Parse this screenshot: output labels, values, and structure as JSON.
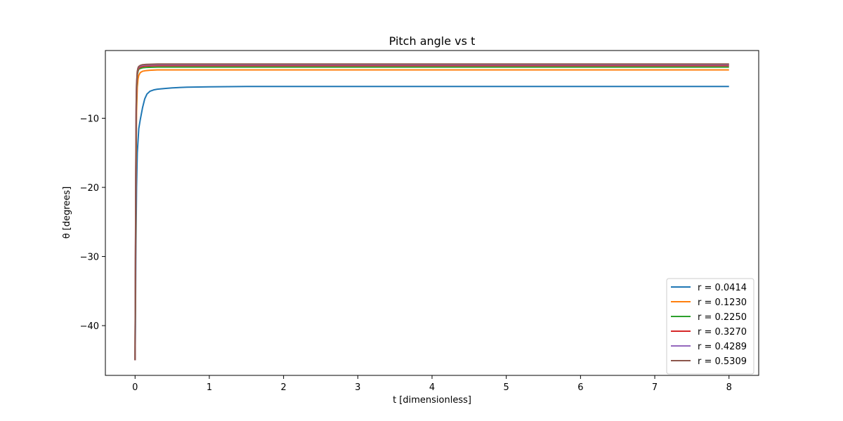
{
  "chart_data": {
    "type": "line",
    "title": "Pitch angle vs t",
    "xlabel": "t [dimensionless]",
    "ylabel": "θ [degrees]",
    "xlim": [
      -0.4,
      8.4
    ],
    "ylim": [
      -47.2,
      -0.2
    ],
    "xticks": [
      0,
      1,
      2,
      3,
      4,
      5,
      6,
      7,
      8
    ],
    "yticks": [
      -40,
      -30,
      -20,
      -10
    ],
    "ytick_labels": [
      "−40",
      "−30",
      "−20",
      "−10"
    ],
    "grid": false,
    "legend_position": "lower-right",
    "series": [
      {
        "name": "r = 0.0414",
        "color": "#1f77b4",
        "x": [
          0,
          0.005,
          0.01,
          0.02,
          0.03,
          0.05,
          0.07,
          0.1,
          0.13,
          0.16,
          0.2,
          0.25,
          0.3,
          0.4,
          0.5,
          0.7,
          1.0,
          1.5,
          2,
          3,
          4,
          5,
          6,
          7,
          8
        ],
        "y": [
          -45,
          -40,
          -30,
          -20,
          -15,
          -11.5,
          -10.2,
          -8.5,
          -7.2,
          -6.5,
          -6.1,
          -5.9,
          -5.8,
          -5.7,
          -5.6,
          -5.5,
          -5.45,
          -5.4,
          -5.4,
          -5.4,
          -5.4,
          -5.4,
          -5.4,
          -5.4,
          -5.4
        ]
      },
      {
        "name": "r = 0.1230",
        "color": "#ff7f0e",
        "x": [
          0,
          0.005,
          0.01,
          0.015,
          0.02,
          0.03,
          0.04,
          0.05,
          0.07,
          0.1,
          0.15,
          0.2,
          0.3,
          0.5,
          1,
          2,
          4,
          6,
          8
        ],
        "y": [
          -45,
          -35,
          -25,
          -15,
          -9,
          -5.5,
          -4.3,
          -3.8,
          -3.4,
          -3.2,
          -3.1,
          -3.05,
          -3.0,
          -3.0,
          -3.0,
          -3.0,
          -3.0,
          -3.0,
          -3.0
        ]
      },
      {
        "name": "r = 0.2250",
        "color": "#2ca02c",
        "x": [
          0,
          0.005,
          0.01,
          0.015,
          0.02,
          0.03,
          0.04,
          0.05,
          0.07,
          0.1,
          0.15,
          0.3,
          1,
          2,
          4,
          6,
          8
        ],
        "y": [
          -45,
          -33,
          -20,
          -10,
          -6,
          -3.8,
          -3.2,
          -2.9,
          -2.8,
          -2.7,
          -2.65,
          -2.6,
          -2.6,
          -2.6,
          -2.6,
          -2.6,
          -2.6
        ]
      },
      {
        "name": "r = 0.3270",
        "color": "#d62728",
        "x": [
          0,
          0.005,
          0.01,
          0.015,
          0.02,
          0.03,
          0.04,
          0.05,
          0.07,
          0.1,
          0.15,
          0.3,
          1,
          2,
          4,
          6,
          8
        ],
        "y": [
          -45,
          -32,
          -19,
          -9,
          -5.5,
          -3.5,
          -3.0,
          -2.75,
          -2.6,
          -2.5,
          -2.45,
          -2.4,
          -2.4,
          -2.4,
          -2.4,
          -2.4,
          -2.4
        ]
      },
      {
        "name": "r = 0.4289",
        "color": "#9467bd",
        "x": [
          0,
          0.005,
          0.01,
          0.015,
          0.02,
          0.03,
          0.04,
          0.05,
          0.07,
          0.1,
          0.15,
          0.3,
          1,
          2,
          4,
          6,
          8
        ],
        "y": [
          -45,
          -31,
          -18,
          -8.5,
          -5.2,
          -3.3,
          -2.8,
          -2.6,
          -2.45,
          -2.35,
          -2.3,
          -2.25,
          -2.25,
          -2.25,
          -2.25,
          -2.25,
          -2.25
        ]
      },
      {
        "name": "r = 0.5309",
        "color": "#8c564b",
        "x": [
          0,
          0.005,
          0.01,
          0.015,
          0.02,
          0.03,
          0.04,
          0.05,
          0.07,
          0.1,
          0.15,
          0.3,
          1,
          2,
          4,
          6,
          8
        ],
        "y": [
          -45,
          -30,
          -17,
          -8,
          -5,
          -3.2,
          -2.7,
          -2.5,
          -2.35,
          -2.25,
          -2.2,
          -2.15,
          -2.15,
          -2.15,
          -2.15,
          -2.15,
          -2.15
        ]
      }
    ]
  }
}
